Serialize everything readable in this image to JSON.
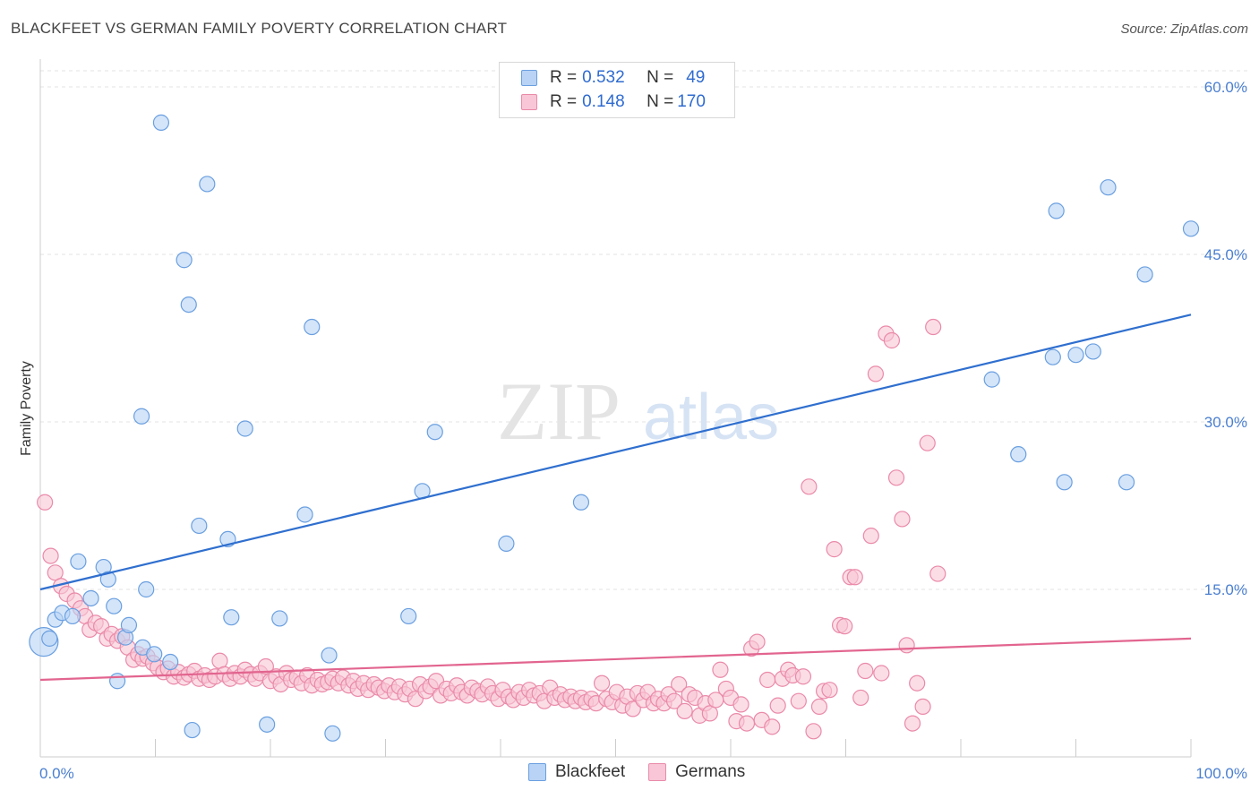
{
  "title": "BLACKFEET VS GERMAN FAMILY POVERTY CORRELATION CHART",
  "source": "Source: ZipAtlas.com",
  "watermark": {
    "zip": "ZIP",
    "atlas": "atlas"
  },
  "legend": {
    "rows": [
      {
        "r_label": "R = ",
        "r_value": "0.532",
        "n_label": "N = ",
        "n_value": "49"
      },
      {
        "r_label": "R = ",
        "r_value": "0.148",
        "n_label": "N = ",
        "n_value": "170"
      }
    ]
  },
  "bottom_legend": {
    "items": [
      "Blackfeet",
      "Germans"
    ]
  },
  "colors": {
    "blackfeet_fill": "#b8d3f5",
    "blackfeet_stroke": "#6a9fe0",
    "blackfeet_line": "#2f6fcf",
    "germans_fill": "#f8c6d6",
    "germans_stroke": "#ea8aa9",
    "germans_line": "#e2658f",
    "grid": "#e3e3e3",
    "tick_text": "#4a7fd0"
  },
  "chart_data": {
    "type": "scatter",
    "title": "BLACKFEET VS GERMAN FAMILY POVERTY CORRELATION CHART",
    "xlabel": "",
    "ylabel": "Family Poverty",
    "xlim": [
      0,
      100
    ],
    "ylim": [
      0,
      62
    ],
    "x_tick_labels": [
      "0.0%",
      "100.0%"
    ],
    "y_ticks": [
      15,
      30,
      45,
      60
    ],
    "y_tick_labels": [
      "15.0%",
      "30.0%",
      "45.0%",
      "60.0%"
    ],
    "grid": true,
    "legend_position": "top-center",
    "series": [
      {
        "name": "Blackfeet",
        "r": 0.532,
        "n": 49,
        "trend": [
          [
            0,
            15.0
          ],
          [
            100,
            39.6
          ]
        ],
        "points": [
          [
            0.3,
            10.3
          ],
          [
            0.8,
            10.6
          ],
          [
            1.3,
            12.3
          ],
          [
            1.9,
            12.9
          ],
          [
            2.8,
            12.6
          ],
          [
            3.3,
            17.5
          ],
          [
            4.4,
            14.2
          ],
          [
            5.5,
            17.0
          ],
          [
            5.9,
            15.9
          ],
          [
            6.4,
            13.5
          ],
          [
            6.7,
            6.8
          ],
          [
            7.4,
            10.7
          ],
          [
            7.7,
            11.8
          ],
          [
            8.9,
            9.8
          ],
          [
            8.8,
            30.5
          ],
          [
            9.2,
            15.0
          ],
          [
            9.9,
            9.2
          ],
          [
            10.5,
            56.8
          ],
          [
            11.3,
            8.5
          ],
          [
            12.5,
            44.5
          ],
          [
            12.9,
            40.5
          ],
          [
            13.2,
            2.4
          ],
          [
            13.8,
            20.7
          ],
          [
            14.5,
            51.3
          ],
          [
            16.3,
            19.5
          ],
          [
            16.6,
            12.5
          ],
          [
            17.8,
            29.4
          ],
          [
            19.7,
            2.9
          ],
          [
            20.8,
            12.4
          ],
          [
            23.0,
            21.7
          ],
          [
            23.6,
            38.5
          ],
          [
            25.1,
            9.1
          ],
          [
            25.4,
            2.1
          ],
          [
            32.0,
            12.6
          ],
          [
            33.2,
            23.8
          ],
          [
            34.3,
            29.1
          ],
          [
            40.5,
            19.1
          ],
          [
            47.0,
            22.8
          ],
          [
            82.7,
            33.8
          ],
          [
            85.0,
            27.1
          ],
          [
            88.0,
            35.8
          ],
          [
            88.3,
            48.9
          ],
          [
            89.0,
            24.6
          ],
          [
            90.0,
            36.0
          ],
          [
            91.5,
            36.3
          ],
          [
            92.8,
            51.0
          ],
          [
            94.4,
            24.6
          ],
          [
            96.0,
            43.2
          ],
          [
            100.0,
            47.3
          ]
        ]
      },
      {
        "name": "Germans",
        "r": 0.148,
        "n": 170,
        "trend": [
          [
            0,
            6.9
          ],
          [
            100,
            10.6
          ]
        ],
        "points": [
          [
            0.4,
            22.8
          ],
          [
            0.9,
            18.0
          ],
          [
            1.3,
            16.5
          ],
          [
            1.8,
            15.3
          ],
          [
            2.3,
            14.6
          ],
          [
            3.0,
            14.0
          ],
          [
            3.5,
            13.3
          ],
          [
            3.9,
            12.6
          ],
          [
            4.3,
            11.4
          ],
          [
            4.8,
            12.0
          ],
          [
            5.3,
            11.7
          ],
          [
            5.8,
            10.6
          ],
          [
            6.2,
            11.0
          ],
          [
            6.7,
            10.4
          ],
          [
            7.1,
            10.8
          ],
          [
            7.6,
            9.8
          ],
          [
            8.1,
            8.7
          ],
          [
            8.5,
            9.2
          ],
          [
            8.9,
            8.8
          ],
          [
            9.3,
            9.0
          ],
          [
            9.8,
            8.4
          ],
          [
            10.2,
            8.0
          ],
          [
            10.7,
            7.6
          ],
          [
            11.1,
            7.9
          ],
          [
            11.6,
            7.2
          ],
          [
            12.0,
            7.6
          ],
          [
            12.5,
            7.1
          ],
          [
            12.9,
            7.4
          ],
          [
            13.4,
            7.7
          ],
          [
            13.8,
            7.0
          ],
          [
            14.3,
            7.3
          ],
          [
            14.7,
            6.9
          ],
          [
            15.2,
            7.2
          ],
          [
            15.6,
            8.6
          ],
          [
            16.0,
            7.4
          ],
          [
            16.5,
            7.0
          ],
          [
            16.9,
            7.5
          ],
          [
            17.4,
            7.2
          ],
          [
            17.8,
            7.8
          ],
          [
            18.3,
            7.4
          ],
          [
            18.7,
            7.0
          ],
          [
            19.1,
            7.5
          ],
          [
            19.6,
            8.1
          ],
          [
            20.0,
            6.8
          ],
          [
            20.5,
            7.2
          ],
          [
            20.9,
            6.5
          ],
          [
            21.4,
            7.5
          ],
          [
            21.8,
            6.9
          ],
          [
            22.3,
            7.1
          ],
          [
            22.7,
            6.6
          ],
          [
            23.2,
            7.3
          ],
          [
            23.6,
            6.4
          ],
          [
            24.1,
            6.9
          ],
          [
            24.5,
            6.5
          ],
          [
            25.0,
            6.7
          ],
          [
            25.4,
            7.0
          ],
          [
            25.9,
            6.6
          ],
          [
            26.3,
            7.1
          ],
          [
            26.8,
            6.4
          ],
          [
            27.2,
            6.8
          ],
          [
            27.6,
            6.1
          ],
          [
            28.1,
            6.6
          ],
          [
            28.5,
            6.0
          ],
          [
            29.0,
            6.5
          ],
          [
            29.4,
            6.2
          ],
          [
            29.9,
            5.9
          ],
          [
            30.3,
            6.4
          ],
          [
            30.8,
            5.8
          ],
          [
            31.2,
            6.3
          ],
          [
            31.7,
            5.6
          ],
          [
            32.1,
            6.1
          ],
          [
            32.6,
            5.2
          ],
          [
            33.0,
            6.5
          ],
          [
            33.5,
            5.9
          ],
          [
            33.9,
            6.3
          ],
          [
            34.4,
            6.8
          ],
          [
            34.8,
            5.5
          ],
          [
            35.3,
            6.1
          ],
          [
            35.7,
            5.7
          ],
          [
            36.2,
            6.4
          ],
          [
            36.6,
            5.8
          ],
          [
            37.1,
            5.5
          ],
          [
            37.5,
            6.2
          ],
          [
            38.0,
            5.9
          ],
          [
            38.4,
            5.6
          ],
          [
            38.9,
            6.3
          ],
          [
            39.3,
            5.7
          ],
          [
            39.8,
            5.2
          ],
          [
            40.2,
            6.0
          ],
          [
            40.7,
            5.4
          ],
          [
            41.1,
            5.1
          ],
          [
            41.6,
            5.8
          ],
          [
            42.0,
            5.3
          ],
          [
            42.5,
            6.0
          ],
          [
            42.9,
            5.5
          ],
          [
            43.4,
            5.7
          ],
          [
            43.8,
            5.0
          ],
          [
            44.3,
            6.2
          ],
          [
            44.7,
            5.3
          ],
          [
            45.2,
            5.6
          ],
          [
            45.6,
            5.1
          ],
          [
            46.1,
            5.4
          ],
          [
            46.5,
            5.0
          ],
          [
            47.0,
            5.3
          ],
          [
            47.4,
            4.9
          ],
          [
            47.9,
            5.2
          ],
          [
            48.3,
            4.8
          ],
          [
            48.8,
            6.6
          ],
          [
            49.2,
            5.2
          ],
          [
            49.7,
            4.9
          ],
          [
            50.1,
            5.8
          ],
          [
            50.6,
            4.6
          ],
          [
            51.0,
            5.4
          ],
          [
            51.5,
            4.3
          ],
          [
            51.9,
            5.7
          ],
          [
            52.4,
            5.1
          ],
          [
            52.8,
            5.8
          ],
          [
            53.3,
            4.8
          ],
          [
            53.7,
            5.2
          ],
          [
            54.2,
            4.8
          ],
          [
            54.6,
            5.6
          ],
          [
            55.1,
            5.0
          ],
          [
            55.5,
            6.5
          ],
          [
            56.0,
            4.1
          ],
          [
            56.4,
            5.6
          ],
          [
            56.9,
            5.3
          ],
          [
            57.3,
            3.7
          ],
          [
            57.8,
            4.8
          ],
          [
            58.2,
            3.9
          ],
          [
            58.7,
            5.1
          ],
          [
            59.1,
            7.8
          ],
          [
            59.6,
            6.1
          ],
          [
            60.0,
            5.3
          ],
          [
            60.5,
            3.2
          ],
          [
            60.9,
            4.7
          ],
          [
            61.4,
            3.0
          ],
          [
            61.8,
            9.7
          ],
          [
            62.3,
            10.3
          ],
          [
            62.7,
            3.3
          ],
          [
            63.2,
            6.9
          ],
          [
            63.6,
            2.7
          ],
          [
            64.1,
            4.6
          ],
          [
            64.5,
            7.0
          ],
          [
            65.0,
            7.8
          ],
          [
            65.4,
            7.3
          ],
          [
            65.9,
            5.0
          ],
          [
            66.3,
            7.2
          ],
          [
            66.8,
            24.2
          ],
          [
            67.2,
            2.3
          ],
          [
            67.7,
            4.5
          ],
          [
            68.1,
            5.9
          ],
          [
            68.6,
            6.0
          ],
          [
            69.0,
            18.6
          ],
          [
            69.5,
            11.8
          ],
          [
            69.9,
            11.7
          ],
          [
            70.4,
            16.1
          ],
          [
            70.8,
            16.1
          ],
          [
            71.3,
            5.3
          ],
          [
            71.7,
            7.7
          ],
          [
            72.2,
            19.8
          ],
          [
            72.6,
            34.3
          ],
          [
            73.1,
            7.5
          ],
          [
            73.5,
            37.9
          ],
          [
            74.0,
            37.3
          ],
          [
            74.4,
            25.0
          ],
          [
            74.9,
            21.3
          ],
          [
            75.3,
            10.0
          ],
          [
            75.8,
            3.0
          ],
          [
            76.2,
            6.6
          ],
          [
            76.7,
            4.5
          ],
          [
            77.1,
            28.1
          ],
          [
            77.6,
            38.5
          ],
          [
            78.0,
            16.4
          ]
        ]
      }
    ]
  }
}
